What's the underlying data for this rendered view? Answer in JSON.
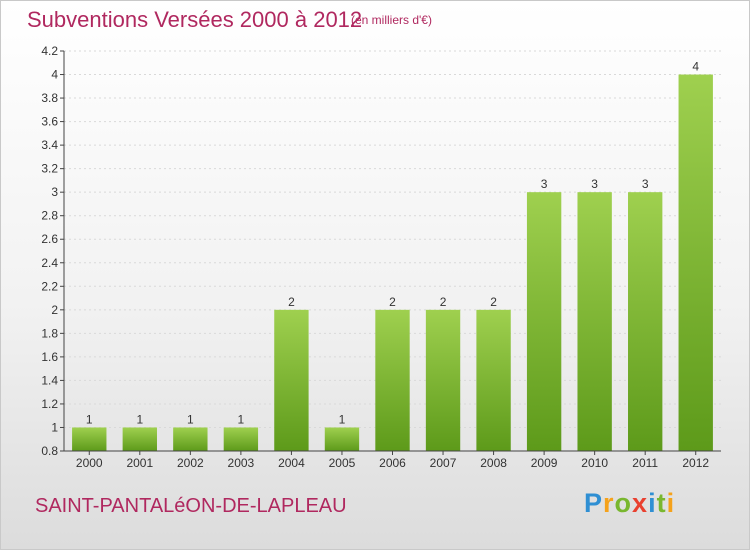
{
  "title": "Subventions Versées 2000 à 2012",
  "subtitle": "(en milliers d'€)",
  "commune": "SAINT-PANTALéON-DE-LAPLEAU",
  "logo": {
    "letters": [
      {
        "ch": "P",
        "color": "#2f8fd3"
      },
      {
        "ch": "r",
        "color": "#f5a21b"
      },
      {
        "ch": "o",
        "color": "#79b72f"
      },
      {
        "ch": "x",
        "color": "#e9402f"
      },
      {
        "ch": "i",
        "color": "#2f8fd3"
      },
      {
        "ch": "t",
        "color": "#79b72f"
      },
      {
        "ch": "i",
        "color": "#f5a21b"
      }
    ]
  },
  "colors": {
    "title": "#b0285f",
    "bar_top": "#9fd04f",
    "bar_bottom": "#5d9a1a",
    "axis": "#444444",
    "grid": "#d9d9d9"
  },
  "chart_data": {
    "type": "bar",
    "categories": [
      "2000",
      "2001",
      "2002",
      "2003",
      "2004",
      "2005",
      "2006",
      "2007",
      "2008",
      "2009",
      "2010",
      "2011",
      "2012"
    ],
    "values": [
      1,
      1,
      1,
      1,
      2,
      1,
      2,
      2,
      2,
      3,
      3,
      3,
      4
    ],
    "data_labels": [
      "1",
      "1",
      "1",
      "1",
      "2",
      "1",
      "2",
      "2",
      "2",
      "3",
      "3",
      "3",
      "4"
    ],
    "ylim": [
      0.8,
      4.2
    ],
    "yticks": [
      "0.8",
      "1",
      "1.2",
      "1.4",
      "1.6",
      "1.8",
      "2",
      "2.2",
      "2.4",
      "2.6",
      "2.8",
      "3",
      "3.2",
      "3.4",
      "3.6",
      "3.8",
      "4",
      "4.2"
    ],
    "ytick_values": [
      0.8,
      1,
      1.2,
      1.4,
      1.6,
      1.8,
      2,
      2.2,
      2.4,
      2.6,
      2.8,
      3,
      3.2,
      3.4,
      3.6,
      3.8,
      4,
      4.2
    ],
    "grid": true
  }
}
